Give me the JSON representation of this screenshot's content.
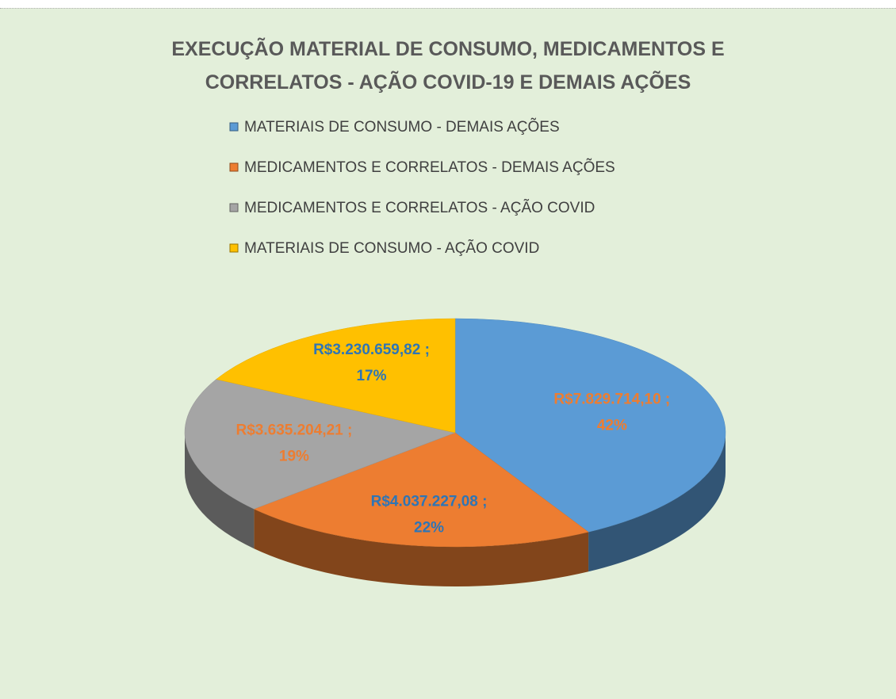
{
  "chart_data": {
    "type": "pie",
    "title": "EXECUÇÃO MATERIAL DE CONSUMO, MEDICAMENTOS E CORRELATOS - AÇÃO COVID-19 E DEMAIS AÇÕES",
    "categories": [
      "MATERIAIS DE CONSUMO - DEMAIS AÇÕES",
      "MEDICAMENTOS E CORRELATOS - DEMAIS AÇÕES",
      "MEDICAMENTOS E CORRELATOS - AÇÃO COVID",
      "MATERIAIS DE CONSUMO - AÇÃO COVID"
    ],
    "values": [
      7829714.1,
      4037227.08,
      3635204.21,
      3230659.82
    ],
    "value_labels": [
      "R$7.829.714,10 ;",
      "R$4.037.227,08 ;",
      "R$3.635.204,21 ;",
      "R$3.230.659,82 ;"
    ],
    "percentages": [
      42,
      22,
      19,
      17
    ],
    "percentage_labels": [
      "42%",
      "22%",
      "19%",
      "17%"
    ],
    "colors": [
      "#5b9bd5",
      "#ed7d31",
      "#a5a5a5",
      "#ffc000"
    ],
    "data_label_colors": [
      "#ed7d31",
      "#2e75b6",
      "#ed7d31",
      "#2e75b6"
    ],
    "legend": "top"
  }
}
